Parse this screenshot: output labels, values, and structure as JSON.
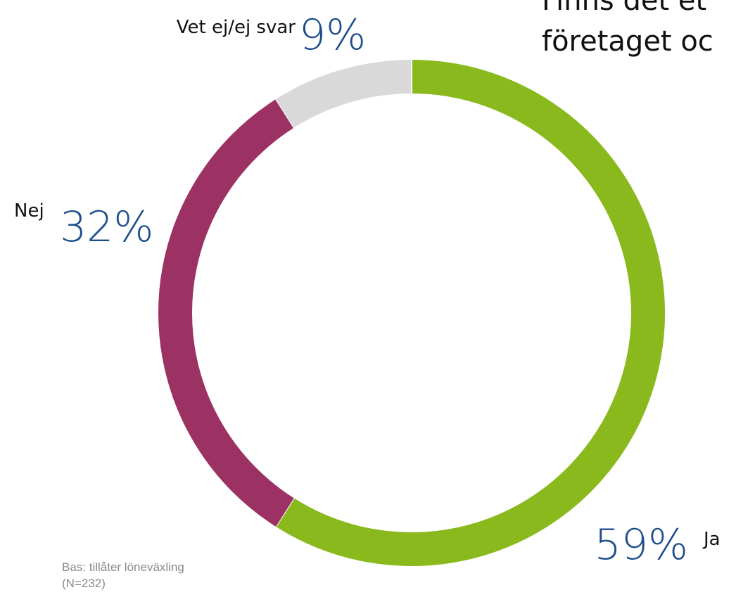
{
  "chart_data": {
    "type": "donut",
    "title_lines": [
      "Finns det et",
      "företaget oc"
    ],
    "categories": [
      "Ja",
      "Nej",
      "Vet ej/ej svar"
    ],
    "values": [
      59,
      32,
      9
    ],
    "value_labels": [
      "59%",
      "32%",
      "9%"
    ],
    "colors": [
      "#8ab91d",
      "#9c3264",
      "#d9d9d9"
    ],
    "footnote": [
      "Bas: tillåter löneväxling",
      "(N=232)"
    ]
  }
}
